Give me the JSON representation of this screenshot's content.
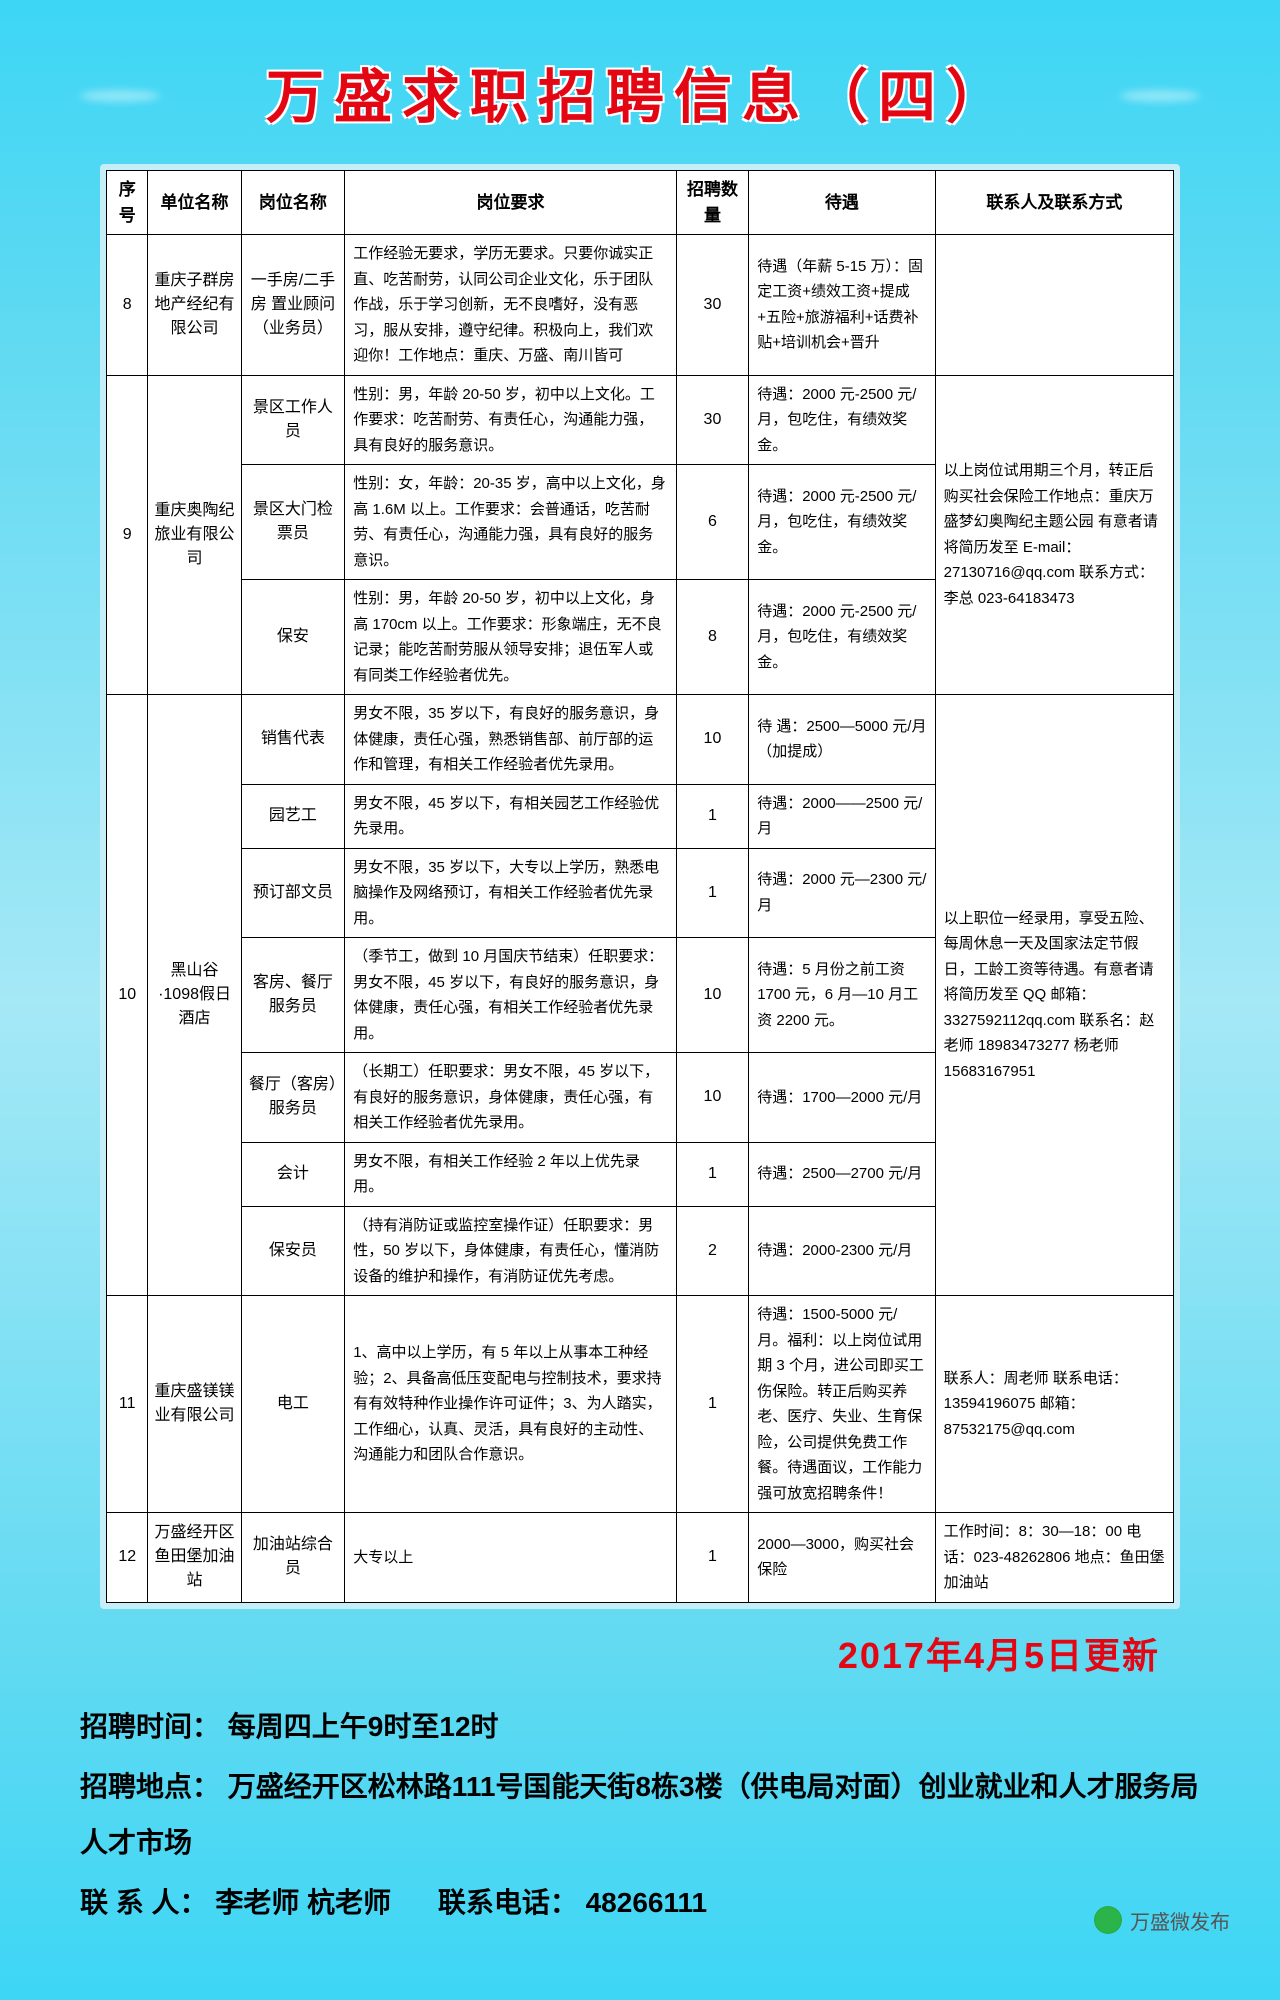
{
  "title": "万盛求职招聘信息（四）",
  "headers": {
    "idx": "序号",
    "company": "单位名称",
    "position": "岗位名称",
    "requirement": "岗位要求",
    "number": "招聘数量",
    "treatment": "待遇",
    "contact": "联系人及联系方式"
  },
  "rows": [
    {
      "idx": "8",
      "company": "重庆子群房地产经纪有限公司",
      "position": "一手房/二手房 置业顾问（业务员）",
      "requirement": "工作经验无要求，学历无要求。只要你诚实正直、吃苦耐劳，认同公司企业文化，乐于团队作战，乐于学习创新，无不良嗜好，没有恶习，服从安排，遵守纪律。积极向上，我们欢迎你！工作地点：重庆、万盛、南川皆可",
      "number": "30",
      "treatment": "待遇（年薪 5-15 万）：固定工资+绩效工资+提成+五险+旅游福利+话费补贴+培训机会+晋升",
      "contact": ""
    },
    {
      "idx": "9",
      "company": "重庆奥陶纪旅业有限公司",
      "positions": [
        {
          "name": "景区工作人员",
          "req": "性别：男，年龄 20-50 岁，初中以上文化。工作要求：吃苦耐劳、有责任心，沟通能力强，具有良好的服务意识。",
          "num": "30",
          "treat": "待遇：2000 元-2500 元/月，包吃住，有绩效奖金。"
        },
        {
          "name": "景区大门检票员",
          "req": "性别：女，年龄：20-35 岁，高中以上文化，身高 1.6M 以上。工作要求：会普通话，吃苦耐劳、有责任心，沟通能力强，具有良好的服务意识。",
          "num": "6",
          "treat": "待遇：2000 元-2500 元/月，包吃住，有绩效奖金。"
        },
        {
          "name": "保安",
          "req": "性别：男，年龄 20-50 岁，初中以上文化，身高 170cm 以上。工作要求：形象端庄，无不良记录；能吃苦耐劳服从领导安排；退伍军人或有同类工作经验者优先。",
          "num": "8",
          "treat": "待遇：2000 元-2500 元/月，包吃住，有绩效奖金。"
        }
      ],
      "contact": "以上岗位试用期三个月，转正后购买社会保险工作地点：重庆万盛梦幻奥陶纪主题公园 有意者请将简历发至 E-mail：27130716@qq.com 联系方式：李总 023-64183473"
    },
    {
      "idx": "10",
      "company": "黑山谷·1098假日酒店",
      "positions": [
        {
          "name": "销售代表",
          "req": "男女不限，35 岁以下，有良好的服务意识，身体健康，责任心强，熟悉销售部、前厅部的运作和管理，有相关工作经验者优先录用。",
          "num": "10",
          "treat": "待 遇：2500—5000 元/月（加提成）"
        },
        {
          "name": "园艺工",
          "req": "男女不限，45 岁以下，有相关园艺工作经验优先录用。",
          "num": "1",
          "treat": "待遇：2000——2500 元/月"
        },
        {
          "name": "预订部文员",
          "req": "男女不限，35 岁以下，大专以上学历，熟悉电脑操作及网络预订，有相关工作经验者优先录用。",
          "num": "1",
          "treat": "待遇：2000 元—2300 元/月"
        },
        {
          "name": "客房、餐厅服务员",
          "req": "（季节工，做到 10 月国庆节结束）任职要求：男女不限，45 岁以下，有良好的服务意识，身体健康，责任心强，有相关工作经验者优先录用。",
          "num": "10",
          "treat": "待遇：5 月份之前工资 1700 元，6 月—10 月工资 2200 元。"
        },
        {
          "name": "餐厅（客房）服务员",
          "req": "（长期工）任职要求：男女不限，45 岁以下，有良好的服务意识，身体健康，责任心强，有相关工作经验者优先录用。",
          "num": "10",
          "treat": "待遇：1700—2000 元/月"
        },
        {
          "name": "会计",
          "req": "男女不限，有相关工作经验 2 年以上优先录用。",
          "num": "1",
          "treat": "待遇：2500—2700 元/月"
        },
        {
          "name": "保安员",
          "req": "（持有消防证或监控室操作证）任职要求：男性，50 岁以下，身体健康，有责任心，懂消防设备的维护和操作，有消防证优先考虑。",
          "num": "2",
          "treat": "待遇：2000-2300 元/月"
        }
      ],
      "contact": "以上职位一经录用，享受五险、每周休息一天及国家法定节假日，工龄工资等待遇。有意者请将简历发至 QQ 邮箱：3327592112qq.com 联系名：赵老师 18983473277 杨老师 15683167951"
    },
    {
      "idx": "11",
      "company": "重庆盛镁镁业有限公司",
      "position": "电工",
      "requirement": "1、高中以上学历，有 5 年以上从事本工种经验；2、具备高低压变配电与控制技术，要求持有有效特种作业操作许可证件；3、为人踏实，工作细心，认真、灵活，具有良好的主动性、沟通能力和团队合作意识。",
      "number": "1",
      "treatment": "待遇：1500-5000 元/月。福利：以上岗位试用期 3 个月，进公司即买工伤保险。转正后购买养老、医疗、失业、生育保险，公司提供免费工作餐。待遇面议，工作能力强可放宽招聘条件！",
      "contact": "联系人：周老师 联系电话：13594196075 邮箱：87532175@qq.com"
    },
    {
      "idx": "12",
      "company": "万盛经开区鱼田堡加油站",
      "position": "加油站综合员",
      "requirement": "大专以上",
      "number": "1",
      "treatment": "2000—3000，购买社会保险",
      "contact": "工作时间：8：30—18：00 电话：023-48262806 地点：鱼田堡加油站"
    }
  ],
  "update_date": "2017年4月5日更新",
  "footer": {
    "time_label": "招聘时间：",
    "time_value": "每周四上午9时至12时",
    "place_label": "招聘地点：",
    "place_value": "万盛经开区松林路111号国能天街8栋3楼（供电局对面）创业就业和人才服务局人才市场",
    "contact_label": "联 系 人：",
    "contact_value": "李老师 杭老师",
    "phone_label": "联系电话：",
    "phone_value": "48266111"
  },
  "watermark": "万盛微发布"
}
